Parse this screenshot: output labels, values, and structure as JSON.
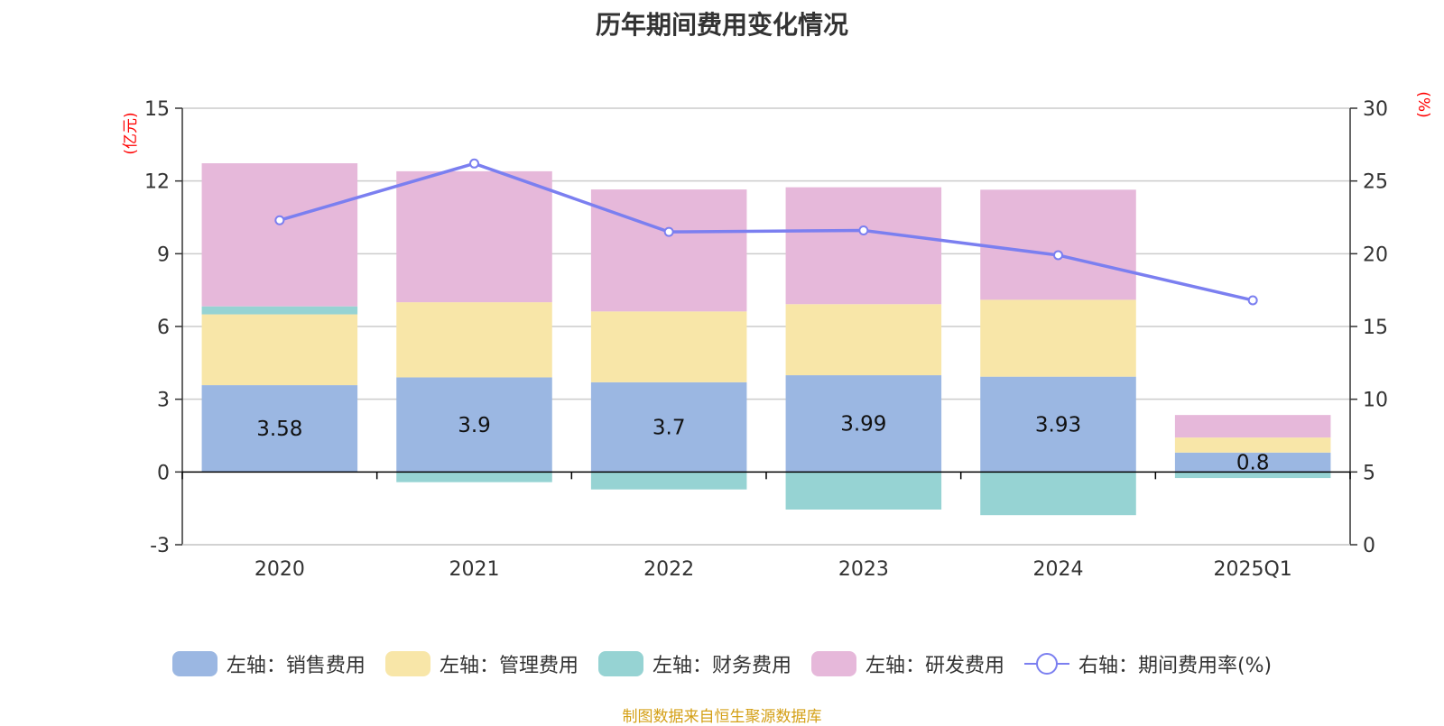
{
  "title": "历年期间费用变化情况",
  "source_note": "制图数据来自恒生聚源数据库",
  "colors": {
    "sales": "#9bb7e2",
    "admin": "#f8e6a8",
    "finance": "#96d3d3",
    "rd": "#e6b8da",
    "rate_line": "#7b7ff0",
    "axis_unit": "#ff0000",
    "axis_text": "#333333",
    "grid": "#cccccc"
  },
  "chart_data": {
    "type": "bar",
    "stacked": true,
    "categories": [
      "2020",
      "2021",
      "2022",
      "2023",
      "2024",
      "2025Q1"
    ],
    "left_axis": {
      "unit_label": "(亿元)",
      "ylim": [
        -3,
        15
      ],
      "ticks": [
        "-3",
        "0",
        "3",
        "6",
        "9",
        "12",
        "15"
      ]
    },
    "right_axis": {
      "unit_label": "(%)",
      "ylim": [
        0,
        30
      ],
      "ticks": [
        "0",
        "5",
        "10",
        "15",
        "20",
        "25",
        "30"
      ]
    },
    "grid": true,
    "legend_position": "bottom",
    "series": [
      {
        "name": "左轴：销售费用",
        "axis": "left",
        "values": [
          3.58,
          3.9,
          3.7,
          3.99,
          3.93,
          0.8
        ],
        "labels": [
          "3.58",
          "3.9",
          "3.7",
          "3.99",
          "3.93",
          "0.8"
        ]
      },
      {
        "name": "左轴：管理费用",
        "axis": "left",
        "values": [
          2.92,
          3.1,
          2.92,
          2.93,
          3.17,
          0.62
        ]
      },
      {
        "name": "左轴：财务费用",
        "axis": "left",
        "values": [
          0.33,
          -0.42,
          -0.72,
          -1.55,
          -1.78,
          -0.25
        ]
      },
      {
        "name": "左轴：研发费用",
        "axis": "left",
        "values": [
          5.9,
          5.4,
          5.03,
          4.82,
          4.54,
          0.93
        ]
      },
      {
        "name": "右轴：期间费用率(%)",
        "axis": "right",
        "type": "line",
        "values": [
          22.3,
          26.2,
          21.5,
          21.6,
          19.9,
          16.8
        ]
      }
    ]
  }
}
